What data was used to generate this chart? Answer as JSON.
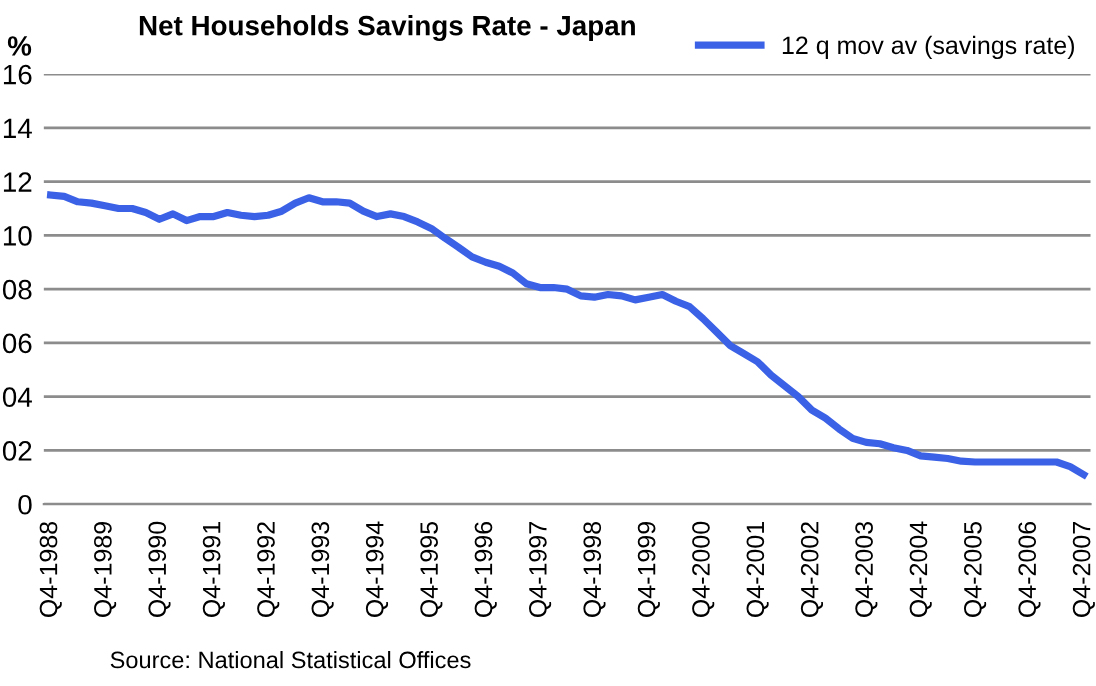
{
  "chart_data": {
    "type": "line",
    "title": "Net Households Savings Rate - Japan",
    "ylabel": "%",
    "annotations": [
      "Source: National Statistical Offices"
    ],
    "categories": [
      "Q4-1988",
      null,
      null,
      null,
      "Q4-1989",
      null,
      null,
      null,
      "Q4-1990",
      null,
      null,
      null,
      "Q4-1991",
      null,
      null,
      null,
      "Q4-1992",
      null,
      null,
      null,
      "Q4-1993",
      null,
      null,
      null,
      "Q4-1994",
      null,
      null,
      null,
      "Q4-1995",
      null,
      null,
      null,
      "Q4-1996",
      null,
      null,
      null,
      "Q4-1997",
      null,
      null,
      null,
      "Q4-1998",
      null,
      null,
      null,
      "Q4-1999",
      null,
      null,
      null,
      "Q4-2000",
      null,
      null,
      null,
      "Q4-2001",
      null,
      null,
      null,
      "Q4-2002",
      null,
      null,
      null,
      "Q4-2003",
      null,
      null,
      null,
      "Q4-2004",
      null,
      null,
      null,
      "Q4-2005",
      null,
      null,
      null,
      "Q4-2006",
      null,
      null,
      null,
      "Q4-2007"
    ],
    "series": [
      {
        "name": "12 q mov av (savings rate)",
        "color": "#3b62e6",
        "values": [
          11.5,
          11.45,
          11.25,
          11.2,
          11.1,
          11.0,
          11.0,
          10.85,
          10.6,
          10.8,
          10.55,
          10.7,
          10.7,
          10.85,
          10.75,
          10.7,
          10.75,
          10.9,
          11.2,
          11.4,
          11.25,
          11.25,
          11.2,
          10.9,
          10.7,
          10.8,
          10.7,
          10.5,
          10.26,
          9.9,
          9.56,
          9.2,
          9.0,
          8.85,
          8.6,
          8.2,
          8.06,
          8.06,
          8.0,
          7.75,
          7.7,
          7.8,
          7.75,
          7.6,
          7.7,
          7.8,
          7.55,
          7.35,
          6.9,
          6.4,
          5.9,
          5.6,
          5.3,
          4.8,
          4.4,
          4.0,
          3.5,
          3.2,
          2.8,
          2.45,
          2.3,
          2.25,
          2.1,
          2.0,
          1.8,
          1.75,
          1.7,
          1.6,
          1.57,
          1.57,
          1.57,
          1.57,
          1.57,
          1.57,
          1.57,
          1.4,
          1.1
        ]
      }
    ],
    "ylim": [
      0,
      16
    ],
    "yticks": [
      0,
      {
        "value": 2,
        "label": "02"
      },
      {
        "value": 4,
        "label": "04"
      },
      {
        "value": 6,
        "label": "06"
      },
      {
        "value": 8,
        "label": "08"
      },
      10,
      12,
      14,
      16
    ],
    "grid": "y",
    "legend": "top right",
    "marker": "none",
    "line_style": "solid"
  }
}
